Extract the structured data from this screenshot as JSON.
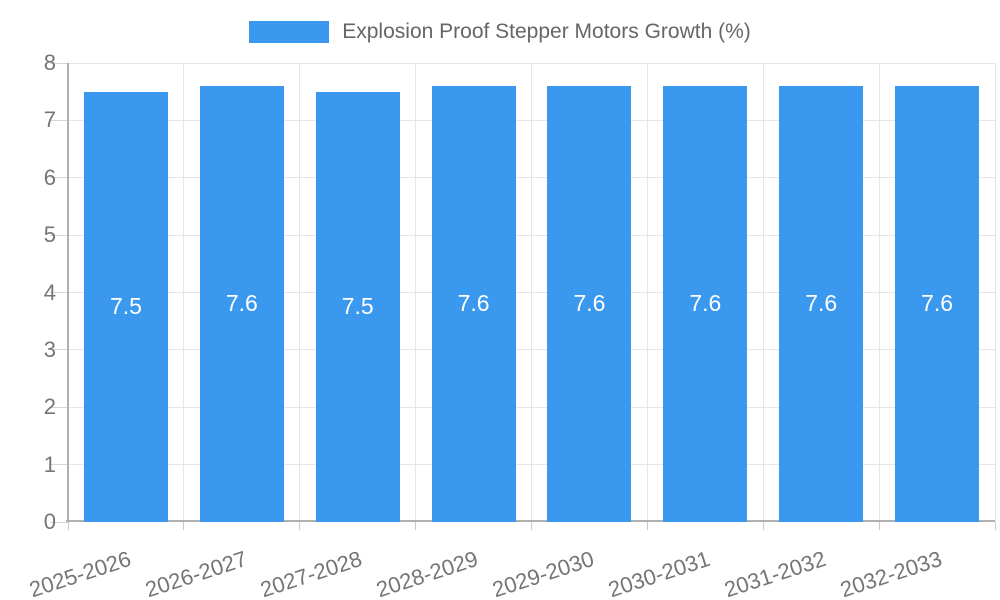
{
  "legend": {
    "label": "Explosion Proof Stepper Motors Growth (%)"
  },
  "chart_data": {
    "type": "bar",
    "title": "Explosion Proof Stepper Motors Growth (%)",
    "categories": [
      "2025-2026",
      "2026-2027",
      "2027-2028",
      "2028-2029",
      "2029-2030",
      "2030-2031",
      "2031-2032",
      "2032-2033"
    ],
    "values": [
      7.5,
      7.6,
      7.5,
      7.6,
      7.6,
      7.6,
      7.6,
      7.6
    ],
    "value_label_decimals": 1,
    "xlabel": "",
    "ylabel": "",
    "ylim": [
      0,
      8
    ],
    "yticks": [
      0,
      1,
      2,
      3,
      4,
      5,
      6,
      7,
      8
    ],
    "grid": true,
    "legend_position": "top-center",
    "colors": {
      "bar": "#3a99ee",
      "value_label": "#ffffff",
      "legend_text": "#666666",
      "tick_label": "#757575",
      "gridline": "#e6e6e6",
      "axis_line": "#b0b0b0",
      "background": "#ffffff"
    }
  }
}
